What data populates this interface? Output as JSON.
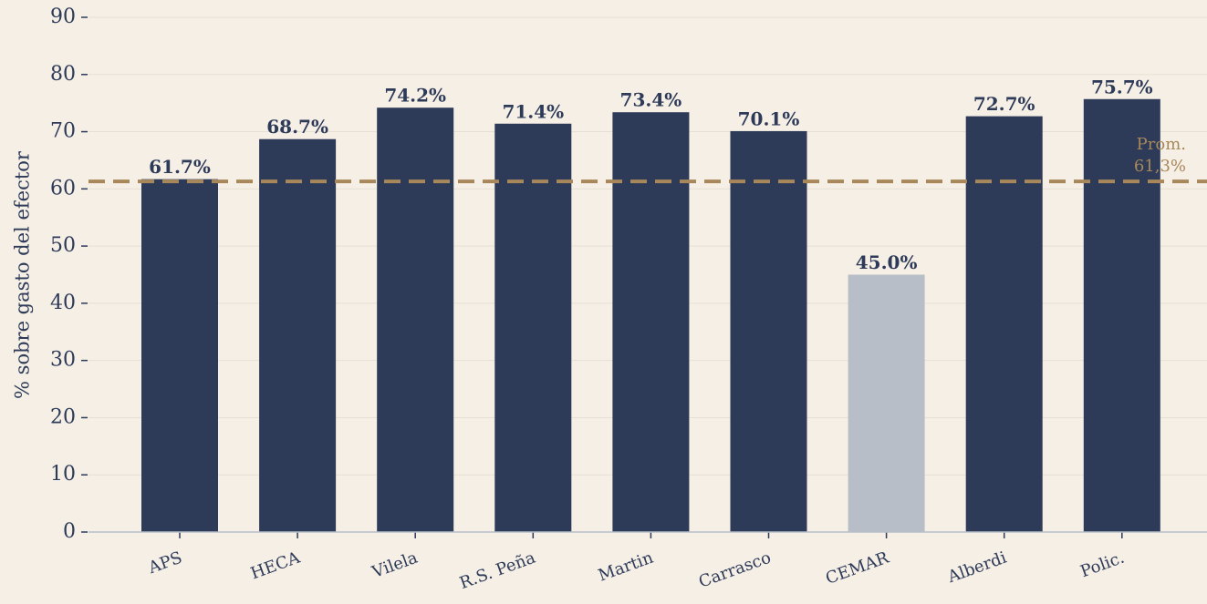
{
  "chart_data": {
    "type": "bar",
    "y_label": "% sobre gasto del efector",
    "categories": [
      "APS",
      "HECA",
      "Vilela",
      "R.S. Peña",
      "Martin",
      "Carrasco",
      "CEMAR",
      "Alberdi",
      "Polic."
    ],
    "values": [
      61.7,
      68.7,
      74.2,
      71.4,
      73.4,
      70.1,
      45.0,
      72.7,
      75.7
    ],
    "value_labels": [
      "61.7%",
      "68.7%",
      "74.2%",
      "71.4%",
      "73.4%",
      "70.1%",
      "45.0%",
      "72.7%",
      "75.7%"
    ],
    "colors": [
      "#2d3a58",
      "#2d3a58",
      "#2d3a58",
      "#2d3a58",
      "#2d3a58",
      "#2d3a58",
      "#b8bec8",
      "#2d3a58",
      "#2d3a58"
    ],
    "ylim": [
      0,
      90
    ],
    "yticks": [
      0,
      10,
      20,
      30,
      40,
      50,
      60,
      70,
      80,
      90
    ],
    "grid": true,
    "reference_line": {
      "value": 61.3,
      "color": "#a8885a",
      "label": [
        "Prom.",
        "61,3%"
      ]
    }
  }
}
